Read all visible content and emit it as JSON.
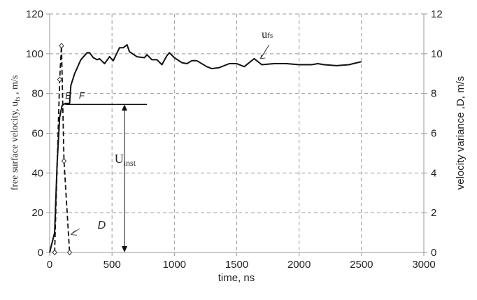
{
  "chart_data": {
    "type": "line",
    "xlabel": "time, ns",
    "ylabel_left": "free surface velocity, u",
    "ylabel_left_sub": "fs",
    "ylabel_left_unit": " , m/s",
    "ylabel_right": "velocity variance ,D, m/s",
    "xlim": [
      0,
      3000
    ],
    "ylim_left": [
      0,
      120
    ],
    "ylim_right": [
      0,
      12
    ],
    "x_ticks": [
      "0",
      "500",
      "1000",
      "1500",
      "2000",
      "2500",
      "3000"
    ],
    "y_ticks_left": [
      "0",
      "20",
      "40",
      "60",
      "80",
      "100",
      "120"
    ],
    "y_ticks_right": [
      "0",
      "2",
      "4",
      "6",
      "8",
      "10",
      "12"
    ],
    "grid": true,
    "series": [
      {
        "name": "ufs",
        "axis": "left",
        "style": "solid",
        "x": [
          0,
          40,
          60,
          80,
          100,
          125,
          160,
          170,
          200,
          250,
          300,
          320,
          350,
          380,
          400,
          440,
          480,
          510,
          560,
          590,
          620,
          640,
          700,
          760,
          780,
          820,
          860,
          900,
          940,
          960,
          1000,
          1060,
          1100,
          1140,
          1180,
          1260,
          1300,
          1360,
          1440,
          1500,
          1560,
          1640,
          1700,
          1800,
          1900,
          2000,
          2100,
          2150,
          2200,
          2300,
          2400,
          2500
        ],
        "y": [
          0,
          10,
          45,
          68,
          74,
          75,
          75,
          84,
          90,
          97,
          100.5,
          100.5,
          98,
          97,
          97.5,
          95,
          98.5,
          96.5,
          103,
          103,
          104.5,
          101,
          98.5,
          98,
          99.5,
          97,
          97,
          94.5,
          99,
          100.5,
          98,
          95.5,
          95,
          96.5,
          96.5,
          93.5,
          92.5,
          93,
          95,
          95,
          93.5,
          97.5,
          94.5,
          95,
          95,
          94.5,
          94.5,
          95,
          94.5,
          94,
          94.5,
          96
        ]
      },
      {
        "name": "D",
        "axis": "right",
        "style": "dashed",
        "markers": "diamond",
        "x": [
          40,
          80,
          95,
          115,
          160
        ],
        "y": [
          0,
          8.7,
          10.4,
          4.6,
          0
        ]
      }
    ],
    "annotations": {
      "uinst_level": 74.5,
      "uinst_label": "U",
      "uinst_sub": "inst",
      "E": "E",
      "F": "F",
      "D": "D",
      "ufs_label": "u",
      "ufs_sub": "fs"
    }
  }
}
